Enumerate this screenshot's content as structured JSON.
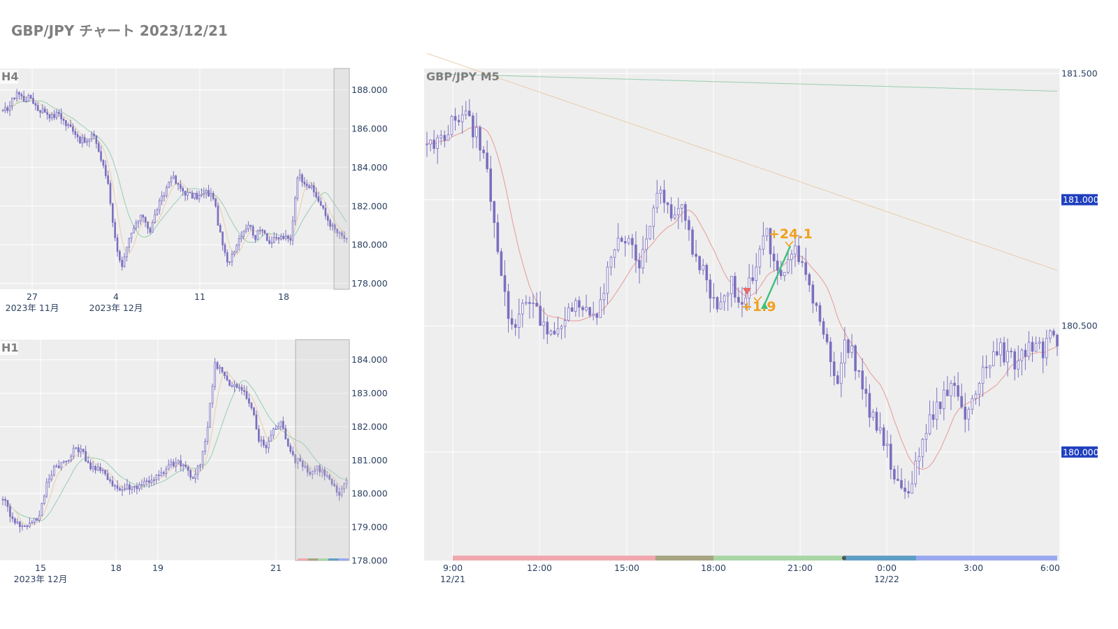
{
  "page": {
    "title": "GBP/JPY チャート 2023/12/21"
  },
  "colors": {
    "plot_bg": "#eeeeee",
    "grid": "#ffffff",
    "candle": "#7a6fbf",
    "ma_short": "#e88f8f",
    "ma_mid": "#e8c9a0",
    "ma_long": "#8fc9a8",
    "label_bg": "#1f3fbf",
    "annotation": "#f0a020",
    "entry_up": "#3cbf7a",
    "entry_down": "#e86a6a",
    "session_bar": [
      "#f0a8ae",
      "#a7a582",
      "#a9d6a6",
      "#5f9fc6",
      "#9aa8f0"
    ]
  },
  "chart_data": [
    {
      "panel": "h4",
      "type": "candlestick",
      "title": "H4",
      "x_ticks": [
        {
          "label": "27",
          "sub": "2023年 11月"
        },
        {
          "label": "4",
          "sub": "2023年 12月"
        },
        {
          "label": "11",
          "sub": ""
        },
        {
          "label": "18",
          "sub": ""
        }
      ],
      "y_ticks": [
        "188.000",
        "186.000",
        "184.000",
        "182.000",
        "180.000",
        "178.000"
      ],
      "ylim": [
        177.7,
        189.1
      ],
      "grid": true,
      "highlight": "right-edge window (2023/12/21)",
      "series_close": [
        186.8,
        187.2,
        187.9,
        187.5,
        187.6,
        187.0,
        186.9,
        186.6,
        186.8,
        186.2,
        186.0,
        185.4,
        185.3,
        185.7,
        184.4,
        183.2,
        180.3,
        178.8,
        180.2,
        181.1,
        181.5,
        180.7,
        181.9,
        182.6,
        183.6,
        183.0,
        182.7,
        182.5,
        182.5,
        182.7,
        182.5,
        180.5,
        179.0,
        179.8,
        180.6,
        181.1,
        180.4,
        180.9,
        180.1,
        180.3,
        180.4,
        180.2,
        183.6,
        183.3,
        182.9,
        182.3,
        181.5,
        180.9,
        180.5,
        180.3
      ]
    },
    {
      "panel": "h1",
      "type": "candlestick",
      "title": "H1",
      "x_ticks": [
        {
          "label": "15",
          "sub": "2023年 12月"
        },
        {
          "label": "18",
          "sub": ""
        },
        {
          "label": "19",
          "sub": ""
        },
        {
          "label": "21",
          "sub": ""
        }
      ],
      "y_ticks": [
        "184.000",
        "183.000",
        "182.000",
        "181.000",
        "180.000",
        "179.000",
        "178.000"
      ],
      "ylim": [
        178.0,
        184.6
      ],
      "grid": true,
      "highlight": "right-edge window (2023/12/21)",
      "series_close": [
        179.9,
        179.4,
        179.1,
        179.0,
        179.2,
        179.3,
        180.3,
        180.8,
        180.9,
        181.0,
        181.4,
        181.2,
        180.8,
        180.7,
        180.6,
        180.3,
        180.1,
        180.2,
        180.2,
        180.3,
        180.4,
        180.5,
        180.6,
        180.9,
        180.9,
        180.8,
        180.4,
        180.9,
        182.0,
        183.9,
        183.7,
        183.2,
        183.2,
        183.0,
        182.6,
        181.6,
        181.4,
        181.9,
        182.1,
        181.5,
        181.0,
        180.9,
        180.6,
        180.8,
        180.6,
        180.3,
        179.9,
        180.4
      ]
    },
    {
      "panel": "m5",
      "type": "candlestick",
      "title": "GBP/JPY M5",
      "x_ticks": [
        {
          "label": "9:00",
          "sub": "12/21"
        },
        {
          "label": "12:00",
          "sub": ""
        },
        {
          "label": "15:00",
          "sub": ""
        },
        {
          "label": "18:00",
          "sub": ""
        },
        {
          "label": "21:00",
          "sub": ""
        },
        {
          "label": "0:00",
          "sub": "12/22"
        },
        {
          "label": "3:00",
          "sub": ""
        },
        {
          "label": "6:00",
          "sub": ""
        }
      ],
      "y_ticks": [
        "181.500",
        "181.000",
        "180.500",
        "180.000"
      ],
      "ylim": [
        179.57,
        181.52
      ],
      "price_labels": [
        "181.000",
        "180.000"
      ],
      "grid": true,
      "annotations": [
        {
          "text": "+24.1",
          "kind": "exit"
        },
        {
          "text": "+1.9",
          "kind": "exit"
        }
      ],
      "series_close": [
        181.23,
        181.21,
        181.25,
        181.28,
        181.32,
        181.35,
        181.3,
        181.26,
        181.18,
        181.02,
        180.82,
        180.62,
        180.48,
        180.55,
        180.62,
        180.58,
        180.52,
        180.5,
        180.45,
        180.48,
        180.55,
        180.6,
        180.57,
        180.52,
        180.55,
        180.63,
        180.78,
        180.86,
        180.84,
        180.8,
        180.76,
        180.86,
        180.97,
        181.02,
        180.97,
        180.93,
        180.96,
        180.86,
        180.76,
        180.74,
        180.64,
        180.6,
        180.64,
        180.68,
        180.57,
        180.63,
        180.7,
        180.8,
        180.86,
        180.74,
        180.7,
        180.76,
        180.8,
        180.72,
        180.66,
        180.58,
        180.48,
        180.38,
        180.28,
        180.42,
        180.4,
        180.31,
        180.2,
        180.14,
        180.08,
        180.0,
        179.9,
        179.83,
        179.86,
        179.93,
        180.05,
        180.12,
        180.17,
        180.22,
        180.27,
        180.22,
        180.14,
        180.22,
        180.3,
        180.35,
        180.38,
        180.4,
        180.37,
        180.36,
        180.4,
        180.42,
        180.43,
        180.4,
        180.45,
        180.42
      ]
    }
  ]
}
